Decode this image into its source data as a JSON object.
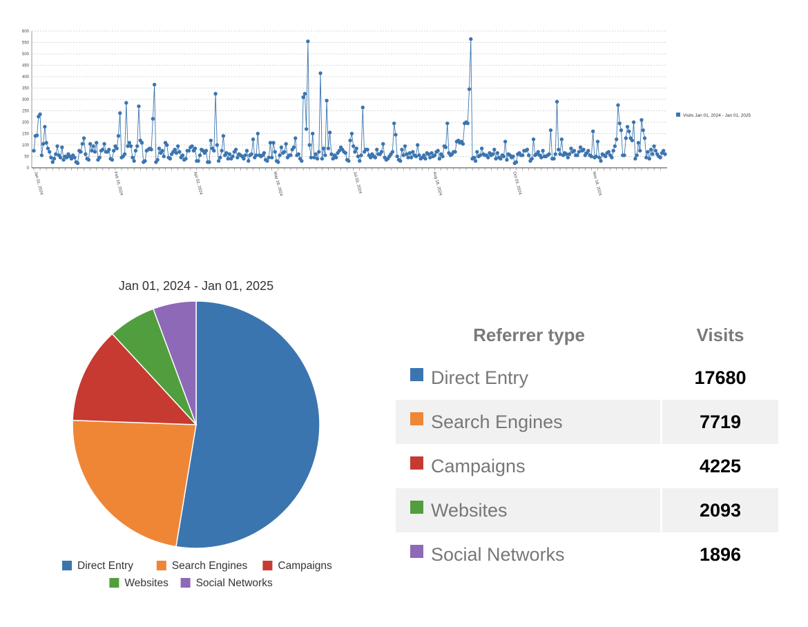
{
  "colors": {
    "direct_entry": "#3b75af",
    "search_engines": "#ef8636",
    "campaigns": "#c63a32",
    "websites": "#519e3e",
    "social_networks": "#8d69b8"
  },
  "chart_data": [
    {
      "type": "line",
      "title": "",
      "legend": "Visits Jan 01, 2024 - Jan 01, 2025",
      "legend_position": "right",
      "ylim": [
        0,
        600
      ],
      "yticks": [
        0,
        50,
        100,
        150,
        200,
        250,
        300,
        350,
        400,
        450,
        500,
        550,
        600
      ],
      "xticks": [
        "Jan 01, 2024",
        "Feb 16, 2024",
        "Apr 02, 2024",
        "May 18, 2024",
        "Jul 03, 2024",
        "Aug 18, 2024",
        "Oct 03, 2024",
        "Nov 18, 2024"
      ],
      "grid": true,
      "series": [
        {
          "name": "Visits Jan 01, 2024 - Jan 01, 2025",
          "values": [
            75,
            140,
            142,
            225,
            235,
            55,
            105,
            180,
            110,
            85,
            70,
            45,
            25,
            40,
            60,
            95,
            55,
            45,
            90,
            35,
            50,
            45,
            60,
            50,
            40,
            55,
            45,
            25,
            20,
            75,
            70,
            105,
            130,
            60,
            40,
            35,
            105,
            75,
            95,
            70,
            110,
            35,
            45,
            75,
            80,
            105,
            70,
            70,
            80,
            40,
            35,
            75,
            95,
            85,
            140,
            240,
            45,
            50,
            60,
            285,
            95,
            110,
            95,
            45,
            30,
            75,
            95,
            270,
            120,
            110,
            25,
            30,
            75,
            80,
            85,
            80,
            215,
            365,
            25,
            35,
            85,
            65,
            75,
            50,
            110,
            100,
            45,
            40,
            60,
            70,
            80,
            65,
            95,
            70,
            45,
            55,
            35,
            40,
            75,
            75,
            90,
            95,
            75,
            85,
            30,
            30,
            55,
            80,
            75,
            65,
            75,
            25,
            25,
            120,
            85,
            75,
            325,
            100,
            30,
            45,
            75,
            140,
            55,
            65,
            40,
            60,
            40,
            50,
            70,
            80,
            45,
            60,
            55,
            50,
            40,
            55,
            75,
            30,
            55,
            60,
            125,
            45,
            55,
            150,
            55,
            50,
            55,
            65,
            35,
            30,
            45,
            110,
            45,
            110,
            70,
            30,
            25,
            55,
            90,
            65,
            70,
            105,
            45,
            55,
            55,
            80,
            90,
            130,
            55,
            60,
            40,
            30,
            310,
            325,
            170,
            555,
            100,
            45,
            150,
            45,
            60,
            40,
            70,
            415,
            40,
            85,
            55,
            295,
            85,
            155,
            60,
            40,
            55,
            45,
            65,
            75,
            90,
            80,
            70,
            65,
            35,
            30,
            120,
            150,
            95,
            70,
            85,
            50,
            30,
            55,
            265,
            70,
            80,
            80,
            55,
            45,
            60,
            50,
            45,
            80,
            60,
            60,
            70,
            105,
            45,
            35,
            40,
            50,
            60,
            70,
            195,
            145,
            50,
            35,
            30,
            80,
            55,
            95,
            60,
            45,
            65,
            45,
            70,
            55,
            50,
            100,
            55,
            40,
            45,
            55,
            40,
            65,
            60,
            45,
            65,
            50,
            55,
            70,
            75,
            40,
            60,
            50,
            95,
            90,
            195,
            65,
            55,
            60,
            70,
            70,
            115,
            120,
            110,
            115,
            105,
            195,
            200,
            195,
            345,
            565,
            40,
            45,
            30,
            70,
            50,
            55,
            85,
            60,
            55,
            55,
            45,
            65,
            55,
            60,
            80,
            40,
            65,
            45,
            40,
            55,
            50,
            115,
            35,
            60,
            55,
            45,
            50,
            20,
            25,
            60,
            65,
            55,
            55,
            75,
            75,
            80,
            55,
            30,
            40,
            125,
            55,
            60,
            70,
            55,
            45,
            75,
            50,
            50,
            55,
            60,
            165,
            40,
            40,
            60,
            290,
            80,
            60,
            125,
            55,
            65,
            60,
            45,
            60,
            85,
            70,
            75,
            55,
            55,
            70,
            90,
            75,
            80,
            55,
            65,
            75,
            55,
            50,
            160,
            45,
            50,
            115,
            45,
            30,
            60,
            55,
            50,
            65,
            70,
            55,
            45,
            75,
            95,
            125,
            275,
            195,
            165,
            55,
            55,
            130,
            180,
            160,
            130,
            120,
            200,
            40,
            55,
            110,
            75,
            210,
            165,
            130,
            45,
            70,
            40,
            80,
            60,
            95,
            75,
            60,
            50,
            45,
            65,
            75,
            60
          ]
        }
      ]
    },
    {
      "type": "pie",
      "title": "Jan 01, 2024 - Jan 01, 2025",
      "legend_position": "bottom",
      "categories": [
        "Direct Entry",
        "Search Engines",
        "Campaigns",
        "Websites",
        "Social Networks"
      ],
      "values": [
        17680,
        7719,
        4225,
        2093,
        1896
      ]
    }
  ],
  "table": {
    "headers": [
      "Referrer type",
      "Visits"
    ],
    "rows": [
      {
        "label": "Direct Entry",
        "visits": "17680",
        "color": "#3b75af"
      },
      {
        "label": "Search Engines",
        "visits": "7719",
        "color": "#ef8636"
      },
      {
        "label": "Campaigns",
        "visits": "4225",
        "color": "#c63a32"
      },
      {
        "label": "Websites",
        "visits": "2093",
        "color": "#519e3e"
      },
      {
        "label": "Social Networks",
        "visits": "1896",
        "color": "#8d69b8"
      }
    ]
  }
}
